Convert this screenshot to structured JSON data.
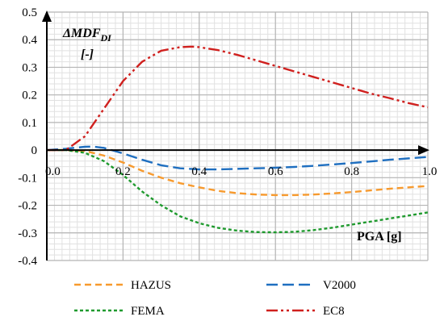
{
  "chart_data": {
    "type": "line",
    "ylabel_main": "ΔMDF",
    "ylabel_sub": "DI",
    "ylabel_unit": "[-]",
    "xlabel": "PGA [g]",
    "xlim": [
      0,
      1.0
    ],
    "ylim": [
      -0.4,
      0.5
    ],
    "grid": true,
    "legend_position": "bottom",
    "y_ticks": [
      "0.5",
      "0.4",
      "0.3",
      "0.2",
      "0.1",
      "0",
      "-0.1",
      "-0.2",
      "-0.3",
      "-0.4"
    ],
    "y_tick_values": [
      0.5,
      0.4,
      0.3,
      0.2,
      0.1,
      0,
      -0.1,
      -0.2,
      -0.3,
      -0.4
    ],
    "x_ticks": [
      "0.0",
      "0.2",
      "0.4",
      "0.6",
      "0.8",
      "1.0"
    ],
    "x_tick_values": [
      0,
      0.2,
      0.4,
      0.6,
      0.8,
      1.0
    ],
    "series": [
      {
        "name": "HAZUS",
        "color": "#f79a2e",
        "dash": "8,5",
        "x": [
          0,
          0.05,
          0.1,
          0.15,
          0.2,
          0.25,
          0.3,
          0.35,
          0.4,
          0.45,
          0.5,
          0.55,
          0.6,
          0.65,
          0.7,
          0.75,
          0.8,
          0.85,
          0.9,
          0.95,
          1.0
        ],
        "y": [
          0,
          0.0,
          -0.003,
          -0.02,
          -0.045,
          -0.075,
          -0.1,
          -0.12,
          -0.135,
          -0.148,
          -0.156,
          -0.161,
          -0.163,
          -0.163,
          -0.161,
          -0.157,
          -0.152,
          -0.146,
          -0.14,
          -0.135,
          -0.13
        ]
      },
      {
        "name": "V2000",
        "color": "#1f6fc0",
        "dash": "14,6",
        "x": [
          0,
          0.05,
          0.1,
          0.12,
          0.15,
          0.2,
          0.25,
          0.3,
          0.35,
          0.4,
          0.45,
          0.5,
          0.55,
          0.6,
          0.65,
          0.7,
          0.75,
          0.8,
          0.85,
          0.9,
          0.95,
          1.0
        ],
        "y": [
          0,
          0.005,
          0.012,
          0.013,
          0.008,
          -0.012,
          -0.035,
          -0.055,
          -0.066,
          -0.07,
          -0.07,
          -0.068,
          -0.066,
          -0.064,
          -0.061,
          -0.057,
          -0.052,
          -0.047,
          -0.041,
          -0.035,
          -0.03,
          -0.025
        ]
      },
      {
        "name": "FEMA",
        "color": "#1f9a2e",
        "dash": "4,3",
        "x": [
          0,
          0.05,
          0.1,
          0.15,
          0.2,
          0.25,
          0.3,
          0.35,
          0.4,
          0.45,
          0.5,
          0.55,
          0.6,
          0.65,
          0.7,
          0.75,
          0.8,
          0.85,
          0.9,
          0.95,
          1.0
        ],
        "y": [
          0,
          0.0,
          -0.01,
          -0.04,
          -0.09,
          -0.15,
          -0.2,
          -0.24,
          -0.265,
          -0.282,
          -0.292,
          -0.297,
          -0.298,
          -0.296,
          -0.29,
          -0.281,
          -0.27,
          -0.259,
          -0.248,
          -0.237,
          -0.226
        ]
      },
      {
        "name": "EC8",
        "color": "#d0201e",
        "dash": "14,4,3,4,3,4",
        "x": [
          0,
          0.05,
          0.1,
          0.15,
          0.2,
          0.25,
          0.3,
          0.35,
          0.38,
          0.4,
          0.45,
          0.5,
          0.55,
          0.6,
          0.65,
          0.7,
          0.75,
          0.8,
          0.85,
          0.9,
          0.95,
          1.0
        ],
        "y": [
          0,
          0.0,
          0.05,
          0.15,
          0.25,
          0.32,
          0.36,
          0.373,
          0.375,
          0.373,
          0.362,
          0.345,
          0.325,
          0.305,
          0.285,
          0.265,
          0.245,
          0.225,
          0.205,
          0.188,
          0.17,
          0.155
        ]
      }
    ]
  }
}
